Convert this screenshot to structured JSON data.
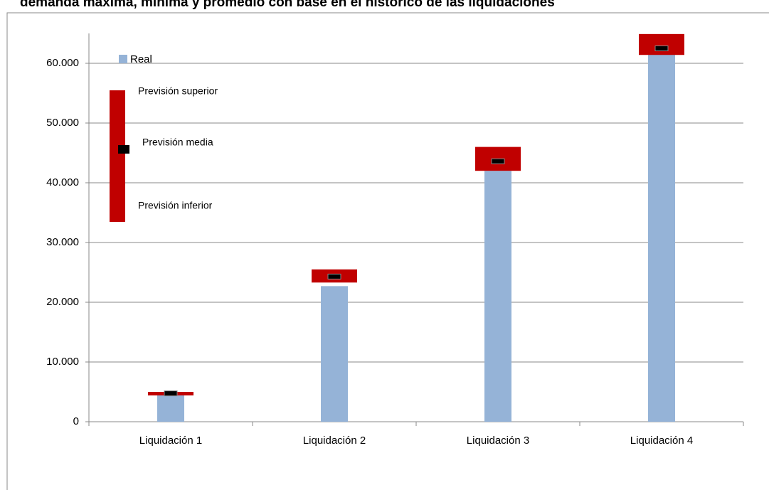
{
  "chart_data": {
    "type": "range_bar",
    "title": "demanda máxima, mínima y promedio con base en el histórico de las liquidaciones",
    "categories": [
      "Liquidación 1",
      "Liquidación 2",
      "Liquidación 3",
      "Liquidación 4"
    ],
    "series": [
      {
        "name": "Real",
        "color": "#95b3d7",
        "values": [
          4500,
          22700,
          42000,
          61700
        ]
      },
      {
        "name": "Previsión superior",
        "color": "#c00000",
        "values": [
          5000,
          25500,
          46000,
          64900
        ]
      },
      {
        "name": "Previsión inferior",
        "color": "#c00000",
        "values": [
          4400,
          23300,
          42000,
          61400
        ]
      },
      {
        "name": "Previsión media",
        "color": "#000000",
        "values": [
          4750,
          24300,
          43600,
          62500
        ]
      }
    ],
    "ylim": [
      0,
      65000
    ],
    "yticks": [
      0,
      {
        "value": 10000,
        "label": "10.000"
      },
      {
        "value": 20000,
        "label": "20.000"
      },
      {
        "value": 30000,
        "label": "30.000"
      },
      {
        "value": 40000,
        "label": "40.000"
      },
      {
        "value": 50000,
        "label": "50.000"
      },
      {
        "value": 60000,
        "label": "60.000"
      }
    ],
    "grid": true
  }
}
